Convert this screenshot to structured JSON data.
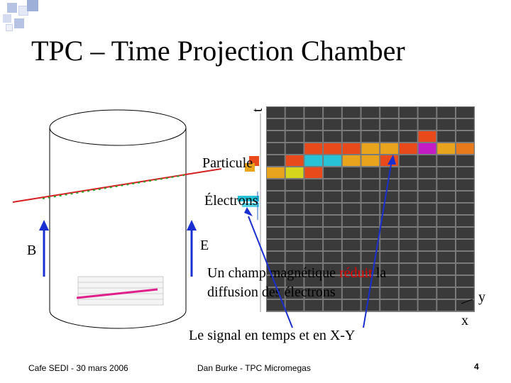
{
  "slide": {
    "title": "TPC – Time Projection Chamber",
    "labels": {
      "particle_label": "Particule",
      "electrons_label": "Électrons",
      "b_label": "B",
      "e_label": "E",
      "t_axis": "t",
      "y_axis": "y",
      "x_axis": "x",
      "magnetic_text_before": "Un champ magnétique ",
      "magnetic_text_red": "réduit",
      "magnetic_text_after": " la",
      "magnetic_text_line2": "diffusion des électrons",
      "signal_caption": "Le signal en temps et en X-Y"
    },
    "footer": {
      "left": "Cafe SEDI - 30 mars 2006",
      "center": "Dan Burke - TPC Micromegas",
      "page_number": "4"
    },
    "colors": {
      "accent_red": "#e00000",
      "deco_blue": "#9fb0d8",
      "particle_red": "#d42020",
      "particle_green": "#2aa02a",
      "bottom_track": "#e0208a",
      "arrow_blue": "#1a2fd0",
      "grid_bg": "#7a7a7a",
      "grid_cell": "#3a3a3a"
    }
  }
}
